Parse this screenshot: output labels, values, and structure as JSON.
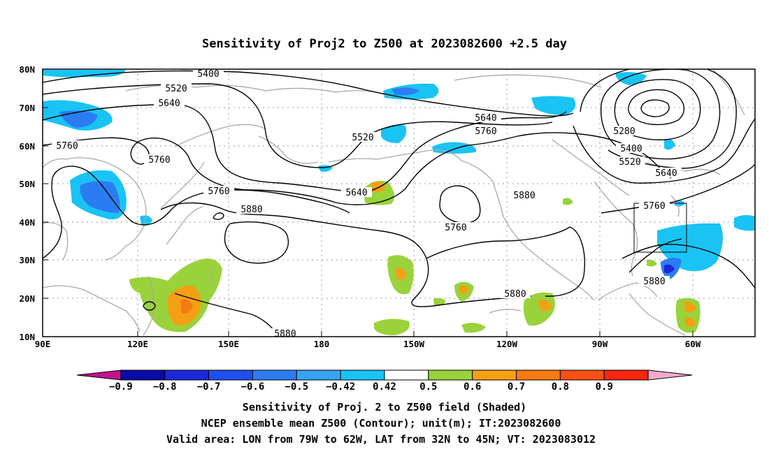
{
  "title": "Sensitivity of Proj2 to Z500 at 2023082600 +2.5 day",
  "axes": {
    "x_ticks": [
      "90E",
      "120E",
      "150E",
      "180",
      "150W",
      "120W",
      "90W",
      "60W"
    ],
    "y_ticks": [
      "80N",
      "70N",
      "60N",
      "50N",
      "40N",
      "30N",
      "20N",
      "10N"
    ]
  },
  "contour_labels": {
    "c5400a": "5400",
    "c5520a": "5520",
    "c5640a": "5640",
    "c5760a": "5760",
    "c5760b": "5760",
    "c5520b": "5520",
    "c5640b": "5640",
    "c5760c": "5760",
    "c5640c": "5640",
    "c5760d": "5760",
    "c5880a": "5880",
    "c5760e": "5760",
    "c5880b": "5880",
    "c5280": "5280",
    "c5400b": "5400",
    "c5520c": "5520",
    "c5640d": "5640",
    "c5760f": "5760",
    "c5880c": "5880",
    "c5880d": "5880",
    "c5880e": "5880"
  },
  "colorbar": {
    "labels": [
      "-0.9",
      "-0.8",
      "-0.7",
      "-0.6",
      "-0.5",
      "-0.42",
      "0.42",
      "0.5",
      "0.6",
      "0.7",
      "0.8",
      "0.9"
    ],
    "colors": [
      "#c1138f",
      "#0a0aa8",
      "#1a28d8",
      "#1f4ff0",
      "#2b7cf2",
      "#37a4f2",
      "#19c3f4",
      "#ffffff",
      "#9ad23c",
      "#f4a014",
      "#f77a12",
      "#f85016",
      "#f8260f",
      "#f4a9cf"
    ]
  },
  "caption": {
    "line1": "Sensitivity of Proj. 2 to Z500 field (Shaded)",
    "line2": "NCEP ensemble mean Z500 (Contour); unit(m); IT:2023082600",
    "line3": "Valid area: LON from 79W to 62W, LAT from 32N to 45N; VT: 2023083012"
  }
}
